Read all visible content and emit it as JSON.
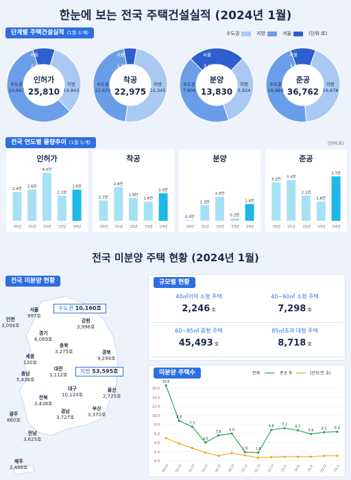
{
  "main_title": "한눈에 보는 전국 주택건설실적 (2024년 1월)",
  "stage_section": {
    "badge": "단계별 주택건설실적",
    "badge_note": "(1월 누계)"
  },
  "legend": {
    "items": [
      {
        "label": "수도권",
        "color": "#a9c9f3"
      },
      {
        "label": "지방",
        "color": "#6b9ee8"
      },
      {
        "label": "서울",
        "color": "#2e5fcc"
      }
    ],
    "unit": "(단위:호)"
  },
  "donuts": [
    {
      "name": "인허가",
      "total": "25,810",
      "seoul_label": "서울",
      "seoul": "2,501",
      "capital_label": "수도권",
      "capital": "10,967",
      "local_label": "지방",
      "local": "14,843",
      "seoul_v": 2501,
      "capital_v": 10967,
      "local_v": 14843
    },
    {
      "name": "착공",
      "total": "22,975",
      "seoul_label": "서울",
      "seoul": "1,306",
      "capital_label": "수도권",
      "capital": "12,630",
      "local_label": "지방",
      "local": "10,345",
      "seoul_v": 1306,
      "capital_v": 12630,
      "local_v": 10345
    },
    {
      "name": "분양",
      "total": "13,830",
      "seoul_label": "서울",
      "seoul": "3,435",
      "capital_label": "수도권",
      "capital": "7,906",
      "local_label": "지방",
      "local": "5,924",
      "seoul_v": 3435,
      "capital_v": 7906,
      "local_v": 5924
    },
    {
      "name": "준공",
      "total": "36,762",
      "seoul_label": "서울",
      "seoul": "4,073",
      "capital_label": "수도권",
      "capital": "19,884",
      "local_label": "지방",
      "local": "16,878",
      "seoul_v": 4073,
      "capital_v": 19884,
      "local_v": 16878
    }
  ],
  "yearly_section": {
    "badge": "전국 연도별 물량추이",
    "badge_note": "(1월 누계)",
    "unit": "(단위:호)"
  },
  "chart_data": [
    {
      "type": "bar",
      "title": "인허가",
      "categories": [
        "'20년",
        "'21년",
        "'22년",
        "'23년",
        "'24년"
      ],
      "values": [
        2.4,
        2.6,
        4.0,
        2.1,
        2.6
      ],
      "value_labels": [
        "2.4만",
        "2.6만",
        "4.0만",
        "2.1만",
        "2.6만"
      ]
    },
    {
      "type": "bar",
      "title": "착공",
      "categories": [
        "'20년",
        "'21년",
        "'22년",
        "'23년",
        "'24년"
      ],
      "values": [
        1.7,
        2.8,
        1.9,
        1.6,
        2.3
      ],
      "value_labels": [
        "1.7만",
        "2.8만",
        "1.9만",
        "1.6만",
        "2.3만"
      ]
    },
    {
      "type": "bar",
      "title": "분양",
      "categories": [
        "'20년",
        "'21년",
        "'22년",
        "'23년",
        "'24년"
      ],
      "values": [
        0.0,
        1.3,
        2.0,
        0.2,
        1.4
      ],
      "value_labels": [
        "0.0만",
        "1.3만",
        "2.0만",
        "0.2만",
        "1.4만"
      ]
    },
    {
      "type": "bar",
      "title": "준공",
      "categories": [
        "'20년",
        "'21년",
        "'22년",
        "'23년",
        "'24년"
      ],
      "values": [
        3.2,
        3.4,
        2.1,
        1.6,
        3.7
      ],
      "value_labels": [
        "3.2만",
        "3.4만",
        "2.1만",
        "1.6만",
        "3.7만"
      ]
    },
    {
      "type": "line",
      "title": "미분양 주택수",
      "legend": [
        "전체",
        "준공 후"
      ],
      "unit": "(단위:만 호)",
      "ylim": [
        0,
        16
      ],
      "yticks": [
        "0.0",
        "2.0",
        "4.0",
        "6.0",
        "8.0",
        "10.0",
        "12.0",
        "14.0",
        "16.0"
      ],
      "x": [
        "'09.03",
        "'10.12",
        "'12.12",
        "'14.12",
        "'16.12",
        "'18.12",
        "'20.12",
        "'21.12",
        "'22.12",
        "'23.3",
        "'23.6",
        "'23.9",
        "'23.12",
        "'24.1"
      ],
      "series": [
        {
          "name": "전체",
          "color": "#1aa14a",
          "values": [
            16.6,
            8.8,
            7.5,
            4.0,
            5.6,
            6.0,
            1.9,
            1.8,
            6.8,
            7.2,
            6.7,
            5.9,
            6.3,
            6.4
          ],
          "value_labels": [
            "16.6",
            "8.8",
            "7.5",
            "4.0",
            "5.6",
            "6.0",
            "1.9",
            "1.8",
            "6.8",
            "7.2",
            "6.7",
            "5.9",
            "6.3",
            "6.4"
          ]
        },
        {
          "name": "준공 후",
          "color": "#f2a516",
          "values": [
            5.0,
            3.8,
            2.8,
            1.8,
            1.1,
            1.7,
            1.2,
            0.7,
            0.8,
            0.9,
            0.9,
            0.9,
            1.1,
            1.1
          ]
        }
      ]
    }
  ],
  "unsold_title": "전국 미분양 주택 현황 (2024년 1월)",
  "unsold_map": {
    "badge": "전국 미분양 현황",
    "capital_callout": {
      "label": "수도권",
      "value": "10,160호"
    },
    "local_callout": {
      "label": "지방",
      "value": "53,595호"
    },
    "regions": [
      {
        "name": "서울",
        "value": "997호"
      },
      {
        "name": "인천",
        "value": "3,094호"
      },
      {
        "name": "경기",
        "value": "6,069호"
      },
      {
        "name": "강원",
        "value": "3,996호"
      },
      {
        "name": "충북",
        "value": "3,275호"
      },
      {
        "name": "세종",
        "value": "120호"
      },
      {
        "name": "대전",
        "value": "1,112호"
      },
      {
        "name": "충남",
        "value": "5,436호"
      },
      {
        "name": "경북",
        "value": "9,299호"
      },
      {
        "name": "대구",
        "value": "10,124호"
      },
      {
        "name": "전북",
        "value": "3,438호"
      },
      {
        "name": "울산",
        "value": "2,725호"
      },
      {
        "name": "경남",
        "value": "3,727호"
      },
      {
        "name": "부산",
        "value": "3,372호"
      },
      {
        "name": "광주",
        "value": "860호"
      },
      {
        "name": "전남",
        "value": "3,625호"
      },
      {
        "name": "제주",
        "value": "2,486호"
      }
    ]
  },
  "size_section": {
    "badge": "규모별 현황",
    "cells": [
      {
        "label": "40㎡이하 소형 주택",
        "value": "2,246",
        "unit": "호"
      },
      {
        "label": "40~60㎡ 소형 주택",
        "value": "7,298",
        "unit": "호"
      },
      {
        "label": "60~85㎡ 중형 주택",
        "value": "45,493",
        "unit": "호"
      },
      {
        "label": "85㎡초과 대형 주택",
        "value": "8,718",
        "unit": "호"
      }
    ]
  },
  "trend_section": {
    "badge": "미분양 주택수"
  }
}
